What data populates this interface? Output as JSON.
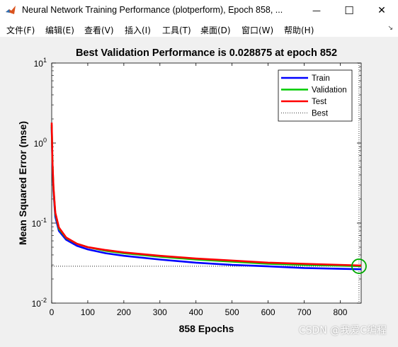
{
  "window": {
    "title": "Neural Network Training Performance (plotperform), Epoch 858, ...",
    "minimize_glyph": "—",
    "maximize_glyph": "☐",
    "close_glyph": "✕"
  },
  "menu": {
    "items": [
      {
        "label": "文件(F)"
      },
      {
        "label": "编辑(E)"
      },
      {
        "label": "查看(V)"
      },
      {
        "label": "插入(I)"
      },
      {
        "label": "工具(T)"
      },
      {
        "label": "桌面(D)"
      },
      {
        "label": "窗口(W)"
      },
      {
        "label": "帮助(H)"
      }
    ],
    "toolbar_toggle": "↘"
  },
  "watermark": "CSDN @我爱C编程",
  "chart_data": {
    "type": "line",
    "title": "Best Validation Performance is 0.028875 at epoch 852",
    "xlabel": "858 Epochs",
    "ylabel": "Mean Squared Error  (mse)",
    "xlim": [
      0,
      858
    ],
    "ylim": [
      0.01,
      10
    ],
    "yscale": "log",
    "xticks": [
      0,
      100,
      200,
      300,
      400,
      500,
      600,
      700,
      800
    ],
    "yticks": [
      {
        "base": "10",
        "exp": "1",
        "value": 10
      },
      {
        "base": "10",
        "exp": "0",
        "value": 1
      },
      {
        "base": "10",
        "exp": "-1",
        "value": 0.1
      },
      {
        "base": "10",
        "exp": "-2",
        "value": 0.01
      }
    ],
    "legend_position": "top-right",
    "series": [
      {
        "name": "Train",
        "color": "#0000ff",
        "x": [
          0,
          2,
          5,
          10,
          20,
          40,
          70,
          100,
          150,
          200,
          300,
          400,
          500,
          600,
          700,
          858
        ],
        "y": [
          1.6,
          0.55,
          0.25,
          0.12,
          0.08,
          0.062,
          0.052,
          0.047,
          0.042,
          0.039,
          0.035,
          0.032,
          0.03,
          0.0288,
          0.0275,
          0.0265
        ]
      },
      {
        "name": "Validation",
        "color": "#00cc00",
        "x": [
          0,
          2,
          5,
          10,
          20,
          40,
          70,
          100,
          150,
          200,
          300,
          400,
          500,
          600,
          700,
          858
        ],
        "y": [
          1.7,
          0.6,
          0.27,
          0.13,
          0.085,
          0.065,
          0.055,
          0.05,
          0.045,
          0.042,
          0.038,
          0.035,
          0.033,
          0.031,
          0.03,
          0.0289
        ]
      },
      {
        "name": "Test",
        "color": "#ff0000",
        "x": [
          0,
          2,
          5,
          10,
          20,
          40,
          70,
          100,
          150,
          200,
          300,
          400,
          500,
          600,
          700,
          858
        ],
        "y": [
          1.8,
          0.6,
          0.28,
          0.135,
          0.088,
          0.066,
          0.055,
          0.05,
          0.046,
          0.043,
          0.039,
          0.036,
          0.034,
          0.032,
          0.031,
          0.0295
        ]
      },
      {
        "name": "Best",
        "color": "#000000",
        "style": "dotted"
      }
    ],
    "best": {
      "epoch": 852,
      "value": 0.028875,
      "marker_color": "#00aa00"
    }
  }
}
